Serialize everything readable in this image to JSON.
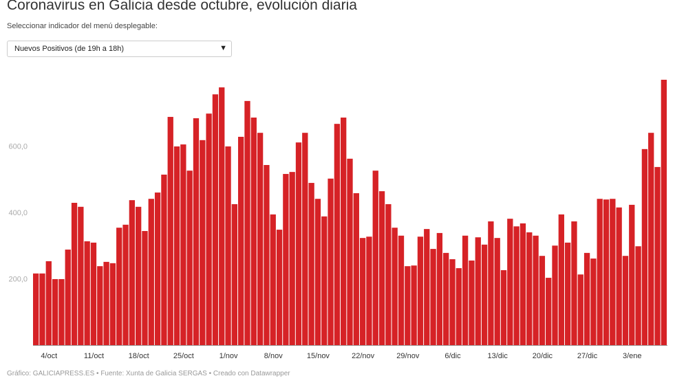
{
  "title": "Coronavirus en Galicia desde octubre, evolución diaria",
  "subtitle": "Seleccionar indicador del menú desplegable:",
  "dropdown": {
    "selected": "Nuevos Positivos (de 19h a 18h)",
    "icon": "chevron-down-icon"
  },
  "footer": "Gráfico: GALICIAPRESS.ES • Fuente: Xunta de Galicia SERGAS • Creado con Datawrapper",
  "chart_data": {
    "type": "bar",
    "title": "Coronavirus en Galicia desde octubre, evolución diaria",
    "xlabel": "",
    "ylabel": "",
    "bar_color": "#d62226",
    "ylim": [
      0,
      800
    ],
    "grid": false,
    "yticks": [
      {
        "value": 200,
        "label": "200,0"
      },
      {
        "value": 400,
        "label": "400,0"
      },
      {
        "value": 600,
        "label": "600,0"
      }
    ],
    "xticks": [
      {
        "date": "2020-10-04",
        "label": "4/oct"
      },
      {
        "date": "2020-10-11",
        "label": "11/oct"
      },
      {
        "date": "2020-10-18",
        "label": "18/oct"
      },
      {
        "date": "2020-10-25",
        "label": "25/oct"
      },
      {
        "date": "2020-11-01",
        "label": "1/nov"
      },
      {
        "date": "2020-11-08",
        "label": "8/nov"
      },
      {
        "date": "2020-11-15",
        "label": "15/nov"
      },
      {
        "date": "2020-11-22",
        "label": "22/nov"
      },
      {
        "date": "2020-11-29",
        "label": "29/nov"
      },
      {
        "date": "2020-12-06",
        "label": "6/dic"
      },
      {
        "date": "2020-12-13",
        "label": "13/dic"
      },
      {
        "date": "2020-12-20",
        "label": "20/dic"
      },
      {
        "date": "2020-12-27",
        "label": "27/dic"
      },
      {
        "date": "2021-01-03",
        "label": "3/ene"
      }
    ],
    "start_date": "2020-10-02",
    "end_date": "2021-01-08",
    "values": [
      216,
      216,
      253,
      199,
      199,
      288,
      429,
      417,
      313,
      309,
      238,
      251,
      247,
      354,
      363,
      437,
      417,
      344,
      441,
      460,
      514,
      688,
      599,
      605,
      526,
      684,
      618,
      698,
      756,
      777,
      599,
      425,
      628,
      736,
      686,
      640,
      543,
      394,
      348,
      516,
      522,
      611,
      640,
      489,
      441,
      388,
      502,
      667,
      686,
      562,
      458,
      323,
      327,
      526,
      464,
      425,
      354,
      330,
      238,
      240,
      327,
      350,
      290,
      338,
      278,
      259,
      232,
      330,
      255,
      325,
      303,
      373,
      323,
      226,
      381,
      358,
      367,
      340,
      330,
      269,
      203,
      300,
      394,
      309,
      373,
      213,
      278,
      261,
      441,
      439,
      441,
      415,
      269,
      423,
      298,
      591,
      640,
      537,
      800
    ]
  }
}
